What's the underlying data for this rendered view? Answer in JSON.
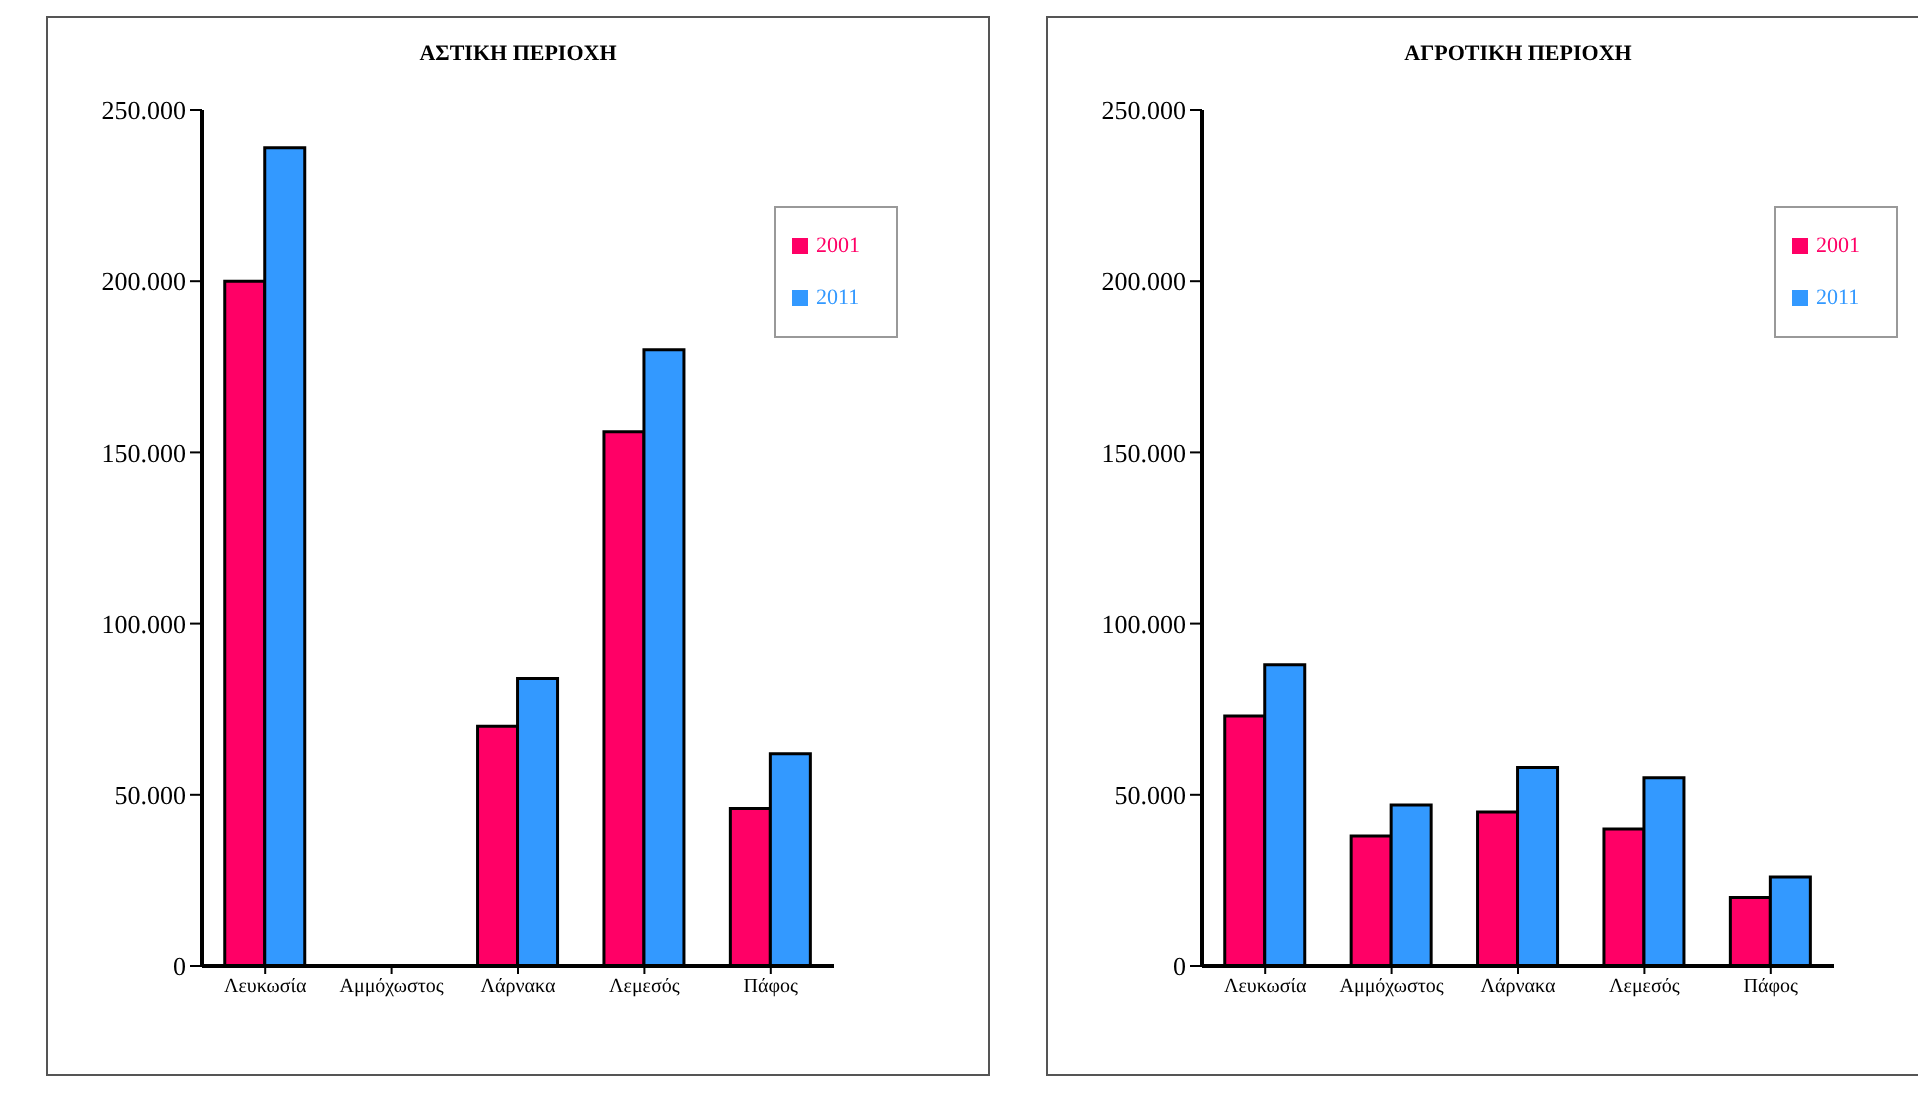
{
  "chart_data": [
    {
      "type": "bar",
      "title": "ΑΣΤΙΚΗ ΠΕΡΙΟΧΗ",
      "categories": [
        "Λευκωσία",
        "Αμμόχωστος",
        "Λάρνακα",
        "Λεμεσός",
        "Πάφος"
      ],
      "series": [
        {
          "name": "2001",
          "color": "#ff0066",
          "values": [
            200000,
            null,
            70000,
            156000,
            46000
          ]
        },
        {
          "name": "2011",
          "color": "#3399ff",
          "values": [
            239000,
            null,
            84000,
            180000,
            62000
          ]
        }
      ],
      "ylim": [
        0,
        250000
      ],
      "yticks": [
        {
          "value": 0,
          "label": "0"
        },
        {
          "value": 50000,
          "label": "50.000"
        },
        {
          "value": 100000,
          "label": "100.000"
        },
        {
          "value": 150000,
          "label": "150.000"
        },
        {
          "value": 200000,
          "label": "200.000"
        },
        {
          "value": 250000,
          "label": "250.000"
        }
      ],
      "legend": "top right"
    },
    {
      "type": "bar",
      "title": "ΑΓΡΟΤΙΚΗ ΠΕΡΙΟΧΗ",
      "categories": [
        "Λευκωσία",
        "Αμμόχωστος",
        "Λάρνακα",
        "Λεμεσός",
        "Πάφος"
      ],
      "series": [
        {
          "name": "2001",
          "color": "#ff0066",
          "values": [
            73000,
            38000,
            45000,
            40000,
            20000
          ]
        },
        {
          "name": "2011",
          "color": "#3399ff",
          "values": [
            88000,
            47000,
            58000,
            55000,
            26000
          ]
        }
      ],
      "ylim": [
        0,
        250000
      ],
      "yticks": [
        {
          "value": 0,
          "label": "0"
        },
        {
          "value": 50000,
          "label": "50.000"
        },
        {
          "value": 100000,
          "label": "100.000"
        },
        {
          "value": 150000,
          "label": "150.000"
        },
        {
          "value": 200000,
          "label": "200.000"
        },
        {
          "value": 250000,
          "label": "250.000"
        }
      ],
      "legend": "top right"
    }
  ]
}
